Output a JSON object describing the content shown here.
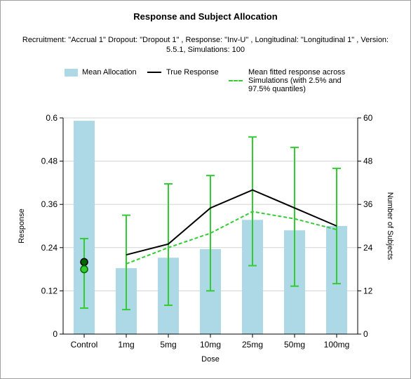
{
  "chart_data": {
    "type": "bar",
    "title": "Response and Subject Allocation",
    "subtitle": "Recruitment: \"Accrual 1\" Dropout: \"Dropout 1\" , Response: \"Inv-U\" , Longitudinal: \"Longitudinal 1\" , Version: 5.5.1, Simulations: 100",
    "xlabel": "Dose",
    "ylabel": "Response",
    "y2label": "Number of Subjects",
    "categories": [
      "Control",
      "1mg",
      "5mg",
      "10mg",
      "25mg",
      "50mg",
      "100mg"
    ],
    "ylim": [
      0,
      0.6
    ],
    "y2lim": [
      0,
      60
    ],
    "yticks": [
      "0",
      "0.12",
      "0.24",
      "0.36",
      "0.48",
      "0.6"
    ],
    "y2ticks": [
      "0",
      "12",
      "24",
      "36",
      "48",
      "60"
    ],
    "grid": true,
    "legend_position": "top",
    "legend": {
      "allocation": "Mean Allocation",
      "true_response": "True Response",
      "fitted_line1": "Mean fitted response across",
      "fitted_line2": "Simulations (with 2.5% and",
      "fitted_line3": "97.5% quantiles)"
    },
    "series": [
      {
        "name": "Mean Allocation",
        "axis": "secondary",
        "color": "#add8e6",
        "values": [
          59.2,
          18.3,
          21.2,
          23.6,
          31.7,
          28.8,
          30.0
        ]
      },
      {
        "name": "True Response",
        "axis": "primary",
        "color": "#000000",
        "control": 0.2,
        "values": [
          null,
          0.22,
          0.25,
          0.35,
          0.4,
          0.35,
          0.3
        ]
      },
      {
        "name": "Mean fitted response across Simulations (with 2.5% and 97.5% quantiles)",
        "axis": "primary",
        "color": "#33cc33",
        "control": 0.18,
        "values": [
          null,
          0.195,
          0.24,
          0.28,
          0.34,
          0.32,
          0.29
        ],
        "lower": [
          0.072,
          0.068,
          0.08,
          0.12,
          0.19,
          0.133,
          0.14
        ],
        "upper": [
          0.265,
          0.33,
          0.417,
          0.44,
          0.547,
          0.518,
          0.46
        ]
      }
    ]
  }
}
